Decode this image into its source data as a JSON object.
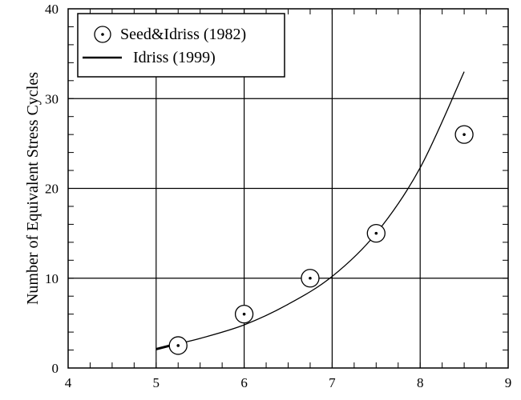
{
  "chart_data": {
    "type": "scatter",
    "title": "",
    "xlabel": "",
    "ylabel": "Number of Equivalent Stress Cycles",
    "xlim": [
      4,
      9
    ],
    "ylim": [
      0,
      40
    ],
    "x_ticks": [
      "4",
      "5",
      "6",
      "7",
      "8",
      "9"
    ],
    "y_ticks": [
      "0",
      "10",
      "20",
      "30",
      "40"
    ],
    "x_minor_step": 0.25,
    "y_minor_step": 2,
    "grid": true,
    "legend_position": "top-left",
    "series": [
      {
        "name": "Seed&Idriss (1982)",
        "type": "scatter",
        "marker": "circled-dot",
        "x": [
          5.25,
          6.0,
          6.75,
          7.5,
          8.5
        ],
        "y": [
          2.5,
          6,
          10,
          15,
          26
        ]
      },
      {
        "name": "Idriss (1999)",
        "type": "line",
        "x": [
          5.0,
          5.2,
          5.5,
          6.0,
          6.5,
          7.0,
          7.5,
          8.0,
          8.5
        ],
        "y": [
          2.1,
          2.6,
          3.3,
          4.8,
          7.1,
          10.2,
          15.0,
          22.3,
          33.0
        ]
      }
    ]
  }
}
